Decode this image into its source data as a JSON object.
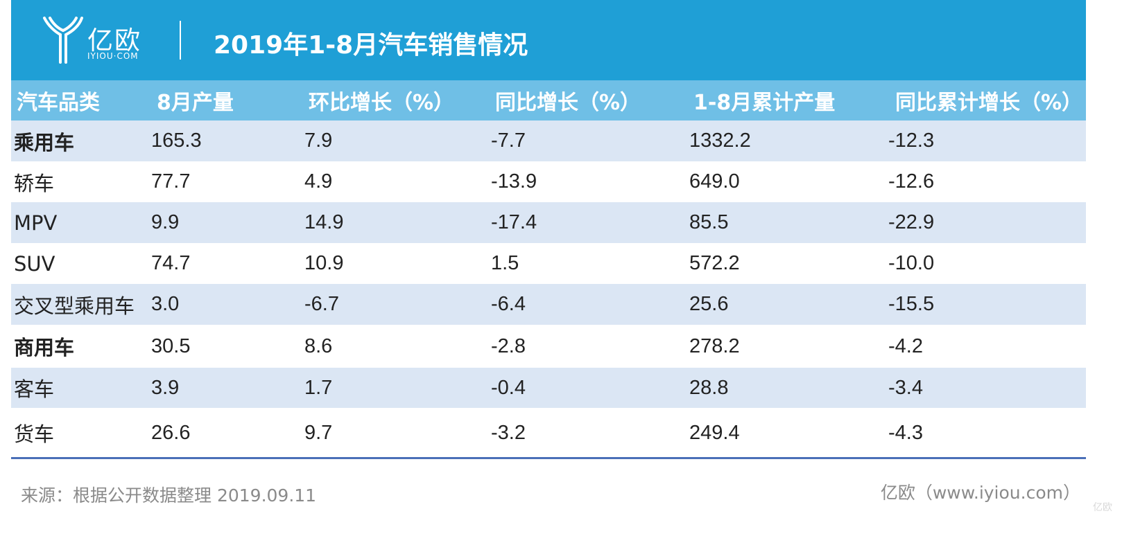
{
  "brand": {
    "logo_cn": "亿欧",
    "logo_en": "IYIOU·COM",
    "header_color": "#1f9fd6",
    "header_row_color": "#6fbfe6",
    "shade_color": "#dbe6f4"
  },
  "title": "2019年1-8月汽车销售情况",
  "table": {
    "columns": [
      "汽车品类",
      "8月产量",
      "环比增长（%）",
      "同比增长（%）",
      "1-8月累计产量",
      "同比累计增长（%）"
    ],
    "rows": [
      [
        "乘用车",
        "165.3",
        "7.9",
        "-7.7",
        "1332.2",
        "-12.3"
      ],
      [
        "轿车",
        "77.7",
        "4.9",
        "-13.9",
        "649.0",
        "-12.6"
      ],
      [
        "MPV",
        "9.9",
        "14.9",
        "-17.4",
        "85.5",
        "-22.9"
      ],
      [
        "SUV",
        "74.7",
        "10.9",
        "1.5",
        "572.2",
        "-10.0"
      ],
      [
        "交叉型乘用车",
        "3.0",
        "-6.7",
        "-6.4",
        "25.6",
        "-15.5"
      ],
      [
        "商用车",
        "30.5",
        "8.6",
        "-2.8",
        "278.2",
        "-4.2"
      ],
      [
        "客车",
        "3.9",
        "1.7",
        "-0.4",
        "28.8",
        "-3.4"
      ],
      [
        "货车",
        "26.6",
        "9.7",
        "-3.2",
        "249.4",
        "-4.3"
      ]
    ]
  },
  "footer": {
    "source": "来源：根据公开数据整理 2019.09.11",
    "credit": "亿欧（www.iyiou.com）",
    "watermark": "亿欧"
  }
}
